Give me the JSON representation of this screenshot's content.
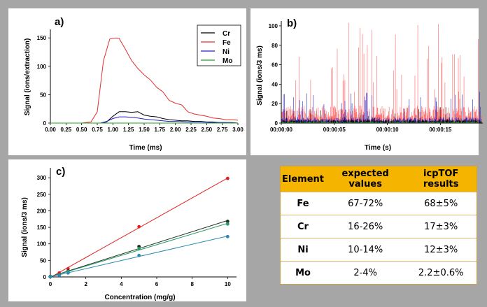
{
  "panel_a": {
    "label": "a)",
    "chart_data": {
      "type": "line",
      "xlabel": "Time (ms)",
      "ylabel": "Signal (ions/extraction)",
      "xlim": [
        0,
        3
      ],
      "ylim": [
        0,
        165
      ],
      "xticks": [
        "0.00",
        "0.25",
        "0.50",
        "0.75",
        "1.00",
        "1.25",
        "1.50",
        "1.75",
        "2.00",
        "2.25",
        "2.50",
        "2.75",
        "3.00"
      ],
      "yticks": [
        "0",
        "50",
        "100",
        "150"
      ],
      "legend_placement": "top-right",
      "series": [
        {
          "name": "Cr",
          "color": "#000000",
          "x": [
            0,
            0.5,
            0.7,
            0.8,
            0.9,
            1.0,
            1.1,
            1.2,
            1.3,
            1.4,
            1.5,
            1.6,
            1.7,
            1.8,
            1.9,
            2.0,
            2.1,
            2.2,
            2.3,
            2.4,
            2.5,
            2.6,
            2.7,
            2.8,
            2.9,
            3.0
          ],
          "y": [
            0,
            0,
            0,
            0,
            2,
            12,
            20,
            20,
            19,
            20,
            14,
            12,
            11,
            8,
            6,
            5,
            4,
            4,
            3,
            3,
            2,
            2,
            1,
            1,
            1,
            0
          ]
        },
        {
          "name": "Fe",
          "color": "#e03030",
          "x": [
            0,
            0.5,
            0.65,
            0.75,
            0.85,
            0.95,
            1.05,
            1.1,
            1.2,
            1.3,
            1.4,
            1.5,
            1.6,
            1.7,
            1.8,
            1.9,
            2.0,
            2.1,
            2.2,
            2.3,
            2.4,
            2.5,
            2.6,
            2.7,
            2.8,
            2.9,
            3.0
          ],
          "y": [
            0,
            0,
            2,
            20,
            110,
            148,
            150,
            149,
            130,
            110,
            96,
            85,
            76,
            63,
            55,
            40,
            35,
            32,
            20,
            16,
            14,
            12,
            9,
            8,
            6,
            6,
            5
          ]
        },
        {
          "name": "Ni",
          "color": "#2020c0",
          "x": [
            0,
            0.6,
            0.8,
            0.9,
            1.0,
            1.1,
            1.2,
            1.3,
            1.4,
            1.5,
            1.6,
            1.7,
            1.8,
            1.9,
            2.0,
            2.2,
            2.4,
            2.6,
            2.8,
            3.0
          ],
          "y": [
            0,
            0,
            0,
            3,
            8,
            11,
            11,
            10,
            9,
            7,
            6,
            5,
            4,
            3,
            3,
            2,
            2,
            1,
            1,
            0
          ]
        },
        {
          "name": "Mo",
          "color": "#20a020",
          "x": [
            0,
            3.0
          ],
          "y": [
            0,
            0
          ]
        }
      ]
    }
  },
  "panel_b": {
    "label": "b)",
    "chart_data": {
      "type": "line",
      "xlabel": "Time (s)",
      "ylabel": "Signal (ions/3 ms)",
      "ylim": [
        0,
        105
      ],
      "xlim": [
        0,
        19
      ],
      "xtick_values": [
        0,
        5,
        10,
        15
      ],
      "xticks": [
        "00:00:00",
        "00:00:05",
        "00:00:10",
        "00:00:15"
      ],
      "yticks": [
        "0",
        "20",
        "40",
        "60",
        "80",
        "100"
      ],
      "series": [
        {
          "name": "Fe",
          "color": "#ff6060"
        },
        {
          "name": "Ni",
          "color": "#2020c0"
        },
        {
          "name": "Cr",
          "color": "#000000"
        },
        {
          "name": "Mo",
          "color": "#20a020"
        }
      ]
    }
  },
  "panel_c": {
    "label": "c)",
    "chart_data": {
      "type": "scatter",
      "xlabel": "Concentration (mg/g)",
      "ylabel": "Signal (ions/3 ms)",
      "xlim": [
        0,
        10.5
      ],
      "ylim": [
        0,
        330
      ],
      "xticks": [
        "0",
        "2",
        "4",
        "6",
        "8",
        "10"
      ],
      "yticks": [
        "0",
        "50",
        "100",
        "150",
        "200",
        "250",
        "300"
      ],
      "series": [
        {
          "name": "Fe",
          "color": "#e02020",
          "x": [
            0,
            0.5,
            1,
            5,
            10
          ],
          "y": [
            2,
            12,
            25,
            152,
            298
          ]
        },
        {
          "name": "Cr",
          "color": "#203020",
          "x": [
            0,
            0.5,
            1,
            5,
            10
          ],
          "y": [
            1,
            6,
            18,
            92,
            168
          ]
        },
        {
          "name": "Ni",
          "color": "#2a9a6a",
          "x": [
            0,
            0.5,
            1,
            5,
            10
          ],
          "y": [
            1,
            6,
            16,
            86,
            160
          ]
        },
        {
          "name": "Mo",
          "color": "#2a8ab0",
          "x": [
            0,
            0.5,
            1,
            5,
            10
          ],
          "y": [
            1,
            5,
            12,
            65,
            122
          ]
        }
      ]
    }
  },
  "table": {
    "headers": [
      "Element",
      "expected values",
      "icpTOF results"
    ],
    "rows": [
      [
        "Fe",
        "67-72%",
        "68±5%"
      ],
      [
        "Cr",
        "16-26%",
        "17±3%"
      ],
      [
        "Ni",
        "10-14%",
        "12±3%"
      ],
      [
        "Mo",
        "2-4%",
        "2.2±0.6%"
      ]
    ]
  }
}
